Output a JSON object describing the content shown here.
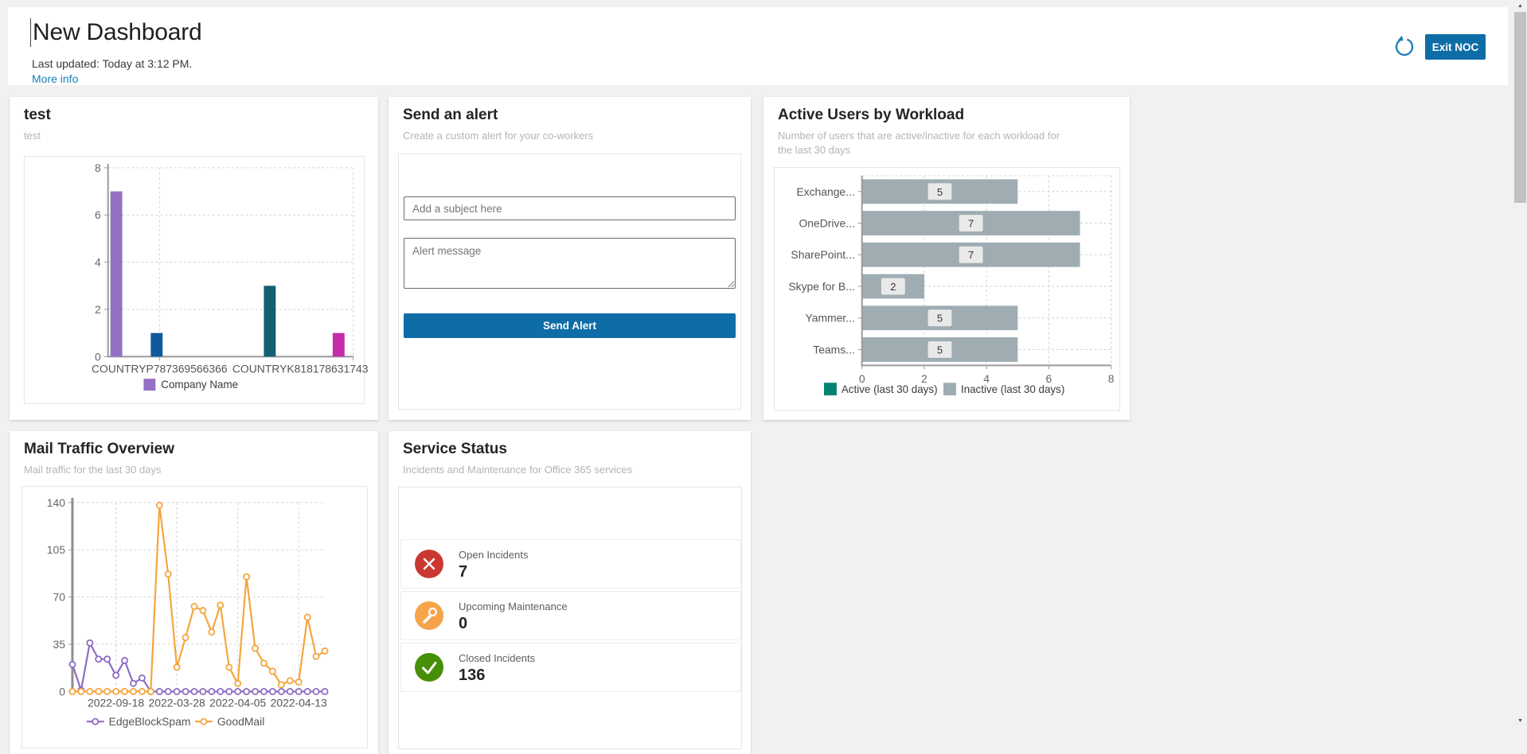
{
  "header": {
    "title": "New Dashboard",
    "last_updated": "Last updated: Today at 3:12 PM.",
    "more_info_label": "More info",
    "exit_button_label": "Exit NOC",
    "accent_color": "#1b7db5"
  },
  "scrollbar": {
    "up_glyph": "▲",
    "down_glyph": "▼"
  },
  "cards": {
    "test": {
      "title": "test",
      "subtitle": "test"
    },
    "send_alert": {
      "title": "Send an alert",
      "subtitle": "Create a custom alert for your co-workers",
      "subject_placeholder": "Add a subject here",
      "message_placeholder": "Alert message",
      "send_button_label": "Send Alert",
      "button_color": "#0e6da6"
    },
    "active_users": {
      "title": "Active Users by Workload",
      "subtitle": "Number of users that are active/inactive for each workload for the last 30 days"
    },
    "mail_traffic": {
      "title": "Mail Traffic Overview",
      "subtitle": "Mail traffic for the last 30 days"
    },
    "service_status": {
      "title": "Service Status",
      "subtitle": "Incidents and Maintenance for Office 365 services",
      "rows": [
        {
          "icon": "x-circle-icon",
          "color": "#cb3832",
          "label": "Open Incidents",
          "value": "7"
        },
        {
          "icon": "wrench-circle-icon",
          "color": "#f6a44a",
          "label": "Upcoming Maintenance",
          "value": "0"
        },
        {
          "icon": "check-circle-icon",
          "color": "#468f06",
          "label": "Closed Incidents",
          "value": "136"
        }
      ]
    }
  },
  "chart_data": [
    {
      "id": "company-bar-chart",
      "type": "bar",
      "title": "test",
      "categories": [
        "COUNTRYP787369566366",
        "COUNTRYK818178631743"
      ],
      "bars": [
        {
          "category": "COUNTRYP787369566366",
          "value": 7,
          "color": "#9470c4"
        },
        {
          "category": "COUNTRYP787369566366",
          "value": 1,
          "color": "#0f5a9e"
        },
        {
          "category": "COUNTRYK818178631743",
          "value": 3,
          "color": "#135e70"
        },
        {
          "category": "COUNTRYK818178631743",
          "value": 1,
          "color": "#c42ca8"
        }
      ],
      "ylim": [
        0,
        8
      ],
      "yticks": [
        0,
        2,
        4,
        6,
        8
      ],
      "grid": true,
      "legend_position": "bottom",
      "legend": [
        {
          "label": "Company Name",
          "color": "#9470c4"
        }
      ]
    },
    {
      "id": "active-users-chart",
      "type": "bar-horizontal",
      "title": "Active Users by Workload",
      "categories": [
        "Exchange...",
        "OneDrive...",
        "SharePoint...",
        "Skype for B...",
        "Yammer...",
        "Teams..."
      ],
      "series": [
        {
          "name": "Active (last 30 days)",
          "color": "#008272",
          "values": [
            0,
            0,
            0,
            0,
            0,
            0
          ]
        },
        {
          "name": "Inactive (last 30 days)",
          "color": "#9fadb3",
          "values": [
            5,
            7,
            7,
            2,
            5,
            5
          ]
        }
      ],
      "data_labels": [
        5,
        7,
        7,
        2,
        5,
        5
      ],
      "xlim": [
        0,
        8
      ],
      "xticks": [
        0,
        2,
        4,
        6,
        8
      ],
      "grid": true,
      "legend_position": "bottom"
    },
    {
      "id": "mail-traffic-chart",
      "type": "line",
      "title": "Mail Traffic Overview",
      "ylim": [
        0,
        140
      ],
      "yticks": [
        0,
        35,
        70,
        105,
        140
      ],
      "x_tick_labels": [
        "2022-09-18",
        "2022-03-28",
        "2022-04-05",
        "2022-04-13"
      ],
      "x_tick_indices": [
        5,
        12,
        19,
        26
      ],
      "grid": true,
      "legend_position": "bottom",
      "series": [
        {
          "name": "EdgeBlockSpam",
          "color": "#8d6cc3",
          "values": [
            20,
            1,
            36,
            24,
            24,
            12,
            23,
            6,
            10,
            0,
            0,
            0,
            0,
            0,
            0,
            0,
            0,
            0,
            0,
            0,
            0,
            0,
            0,
            0,
            0,
            0,
            0,
            0,
            0,
            0
          ]
        },
        {
          "name": "GoodMail",
          "color": "#f5a53d",
          "values": [
            0,
            0,
            0,
            0,
            0,
            0,
            0,
            0,
            0,
            0,
            138,
            87,
            18,
            40,
            63,
            60,
            44,
            64,
            18,
            6,
            85,
            32,
            21,
            15,
            5,
            8,
            7,
            55,
            26,
            30
          ]
        }
      ]
    }
  ]
}
